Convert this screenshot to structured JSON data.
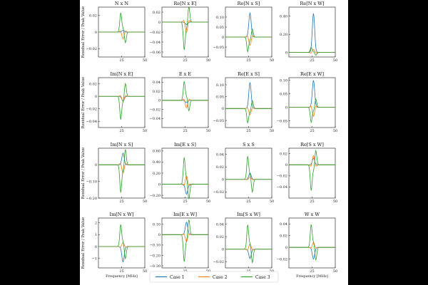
{
  "colors": {
    "case1": "#1f77b4",
    "case2": "#ff7f0e",
    "case3": "#2ca02c"
  },
  "chart_data": {
    "type": "line",
    "grid_shape": [
      4,
      4
    ],
    "row_ylabel": "Residual Error / Peak Value",
    "xlabel": "Frequency [MHz]",
    "legend": [
      "Case 1",
      "Case 2",
      "Case 3"
    ],
    "legend_placement": "bottom-center",
    "subplots": [
      {
        "title": "N x N",
        "xticks": [
          25,
          50
        ],
        "xlim": [
          0,
          50
        ],
        "ylim": [
          -0.03,
          0.03
        ],
        "yticks": [
          -0.02,
          0.0,
          0.02
        ],
        "series": [
          {
            "name": "Case 1",
            "a": 0.002
          },
          {
            "name": "Case 2",
            "a": -0.01
          },
          {
            "name": "Case 3",
            "a": 0.025
          }
        ]
      },
      {
        "title": "Re[N x E]",
        "xticks": [
          25,
          50
        ],
        "xlim": [
          0,
          50
        ],
        "ylim": [
          -0.07,
          0.03
        ],
        "yticks": [
          -0.06,
          -0.04,
          -0.02,
          0.0,
          0.02
        ],
        "series": [
          {
            "name": "Case 1",
            "a": -0.005
          },
          {
            "name": "Case 2",
            "a": -0.025
          },
          {
            "name": "Case 3",
            "a": -0.06
          }
        ]
      },
      {
        "title": "Re[N x S]",
        "xticks": [
          25,
          50
        ],
        "xlim": [
          0,
          50
        ],
        "ylim": [
          -0.1,
          0.15
        ],
        "yticks": [
          -0.05,
          0.0,
          0.05,
          0.1
        ],
        "series": [
          {
            "name": "Case 1",
            "a": 0.12
          },
          {
            "name": "Case 2",
            "a": -0.05
          },
          {
            "name": "Case 3",
            "a": -0.08
          }
        ]
      },
      {
        "title": "Re[N x W]",
        "xticks": [
          25,
          50
        ],
        "xlim": [
          0,
          50
        ],
        "ylim": [
          -0.05,
          0.5
        ],
        "yticks": [
          0.0,
          0.2,
          0.4
        ],
        "series": [
          {
            "name": "Case 1",
            "a": 0.43
          },
          {
            "name": "Case 2",
            "a": 0.04
          },
          {
            "name": "Case 3",
            "a": 0.06
          }
        ]
      },
      {
        "title": "Im[N x E]",
        "xticks": [
          25,
          50
        ],
        "xlim": [
          0,
          50
        ],
        "ylim": [
          -0.05,
          0.03
        ],
        "yticks": [
          -0.04,
          -0.02,
          0.0,
          0.02
        ],
        "series": [
          {
            "name": "Case 1",
            "a": -0.008
          },
          {
            "name": "Case 2",
            "a": -0.01
          },
          {
            "name": "Case 3",
            "a": -0.04
          }
        ]
      },
      {
        "title": "E x E",
        "xticks": [
          25,
          50
        ],
        "xlim": [
          0,
          50
        ],
        "ylim": [
          -0.06,
          0.05
        ],
        "yticks": [
          -0.04,
          -0.02,
          0.0,
          0.02,
          0.04
        ],
        "series": [
          {
            "name": "Case 1",
            "a": -0.005
          },
          {
            "name": "Case 2",
            "a": -0.02
          },
          {
            "name": "Case 3",
            "a": 0.045
          }
        ]
      },
      {
        "title": "Re[E x S]",
        "xticks": [
          25,
          50
        ],
        "xlim": [
          0,
          50
        ],
        "ylim": [
          -0.08,
          0.13
        ],
        "yticks": [
          -0.05,
          0.0,
          0.05,
          0.1
        ],
        "series": [
          {
            "name": "Case 1",
            "a": 0.11
          },
          {
            "name": "Case 2",
            "a": -0.03
          },
          {
            "name": "Case 3",
            "a": -0.065
          }
        ]
      },
      {
        "title": "Re[E x W]",
        "xticks": [
          25,
          50
        ],
        "xlim": [
          0,
          50
        ],
        "ylim": [
          -0.075,
          0.11
        ],
        "yticks": [
          -0.05,
          0.0,
          0.05,
          0.1
        ],
        "series": [
          {
            "name": "Case 1",
            "a": 0.1
          },
          {
            "name": "Case 2",
            "a": -0.04
          },
          {
            "name": "Case 3",
            "a": -0.06
          }
        ]
      },
      {
        "title": "Im[N x S]",
        "xticks": [
          25,
          50
        ],
        "xlim": [
          0,
          50
        ],
        "ylim": [
          -0.2,
          0.1
        ],
        "yticks": [
          -0.2,
          -0.1,
          0.0
        ],
        "series": [
          {
            "name": "Case 1",
            "a": 0.07
          },
          {
            "name": "Case 2",
            "a": -0.06
          },
          {
            "name": "Case 3",
            "a": -0.18
          }
        ]
      },
      {
        "title": "Im[E x S]",
        "xticks": [
          25,
          50
        ],
        "xlim": [
          0,
          50
        ],
        "ylim": [
          -0.25,
          0.65
        ],
        "yticks": [
          -0.2,
          0.0,
          0.2,
          0.4,
          0.6
        ],
        "series": [
          {
            "name": "Case 1",
            "a": -0.18
          },
          {
            "name": "Case 2",
            "a": 0.18
          },
          {
            "name": "Case 3",
            "a": 0.52
          }
        ]
      },
      {
        "title": "S x S",
        "xticks": [
          25,
          50
        ],
        "xlim": [
          0,
          50
        ],
        "ylim": [
          -0.03,
          0.05
        ],
        "yticks": [
          -0.02,
          0.0,
          0.02,
          0.04
        ],
        "series": [
          {
            "name": "Case 1",
            "a": 0.01
          },
          {
            "name": "Case 2",
            "a": 0.005
          },
          {
            "name": "Case 3",
            "a": 0.04
          }
        ]
      },
      {
        "title": "Re[S x W]",
        "xticks": [
          25,
          50
        ],
        "xlim": [
          0,
          50
        ],
        "ylim": [
          -0.06,
          0.03
        ],
        "yticks": [
          -0.04,
          -0.02,
          0.0,
          0.02
        ],
        "series": [
          {
            "name": "Case 1",
            "a": 0.012
          },
          {
            "name": "Case 2",
            "a": 0.02
          },
          {
            "name": "Case 3",
            "a": -0.05
          }
        ]
      },
      {
        "title": "Im[N x W]",
        "xticks": [
          25,
          50
        ],
        "xlim": [
          0,
          50
        ],
        "ylim": [
          -1.8,
          2.4
        ],
        "yticks": [
          -1,
          0,
          1,
          2
        ],
        "series": [
          {
            "name": "Case 1",
            "a": -1.3
          },
          {
            "name": "Case 2",
            "a": 0.4
          },
          {
            "name": "Case 3",
            "a": 2.0
          }
        ]
      },
      {
        "title": "Im[E x W]",
        "xticks": [
          25,
          50
        ],
        "xlim": [
          0,
          50
        ],
        "ylim": [
          -0.32,
          0.16
        ],
        "yticks": [
          -0.3,
          -0.2,
          -0.1,
          0.0,
          0.1
        ],
        "series": [
          {
            "name": "Case 1",
            "a": 0.12
          },
          {
            "name": "Case 2",
            "a": -0.08
          },
          {
            "name": "Case 3",
            "a": -0.28
          }
        ]
      },
      {
        "title": "Im[S x W]",
        "xticks": [
          25,
          50
        ],
        "xlim": [
          0,
          50
        ],
        "ylim": [
          -0.03,
          0.05
        ],
        "yticks": [
          -0.02,
          0.0,
          0.02,
          0.04
        ],
        "series": [
          {
            "name": "Case 1",
            "a": -0.015
          },
          {
            "name": "Case 2",
            "a": 0.01
          },
          {
            "name": "Case 3",
            "a": 0.042
          }
        ]
      },
      {
        "title": "W x W",
        "xticks": [
          25,
          50
        ],
        "xlim": [
          0,
          50
        ],
        "ylim": [
          -0.035,
          0.05
        ],
        "yticks": [
          -0.02,
          0.0,
          0.02,
          0.04
        ],
        "series": [
          {
            "name": "Case 1",
            "a": -0.02
          },
          {
            "name": "Case 2",
            "a": 0.01
          },
          {
            "name": "Case 3",
            "a": 0.042
          }
        ]
      }
    ]
  }
}
